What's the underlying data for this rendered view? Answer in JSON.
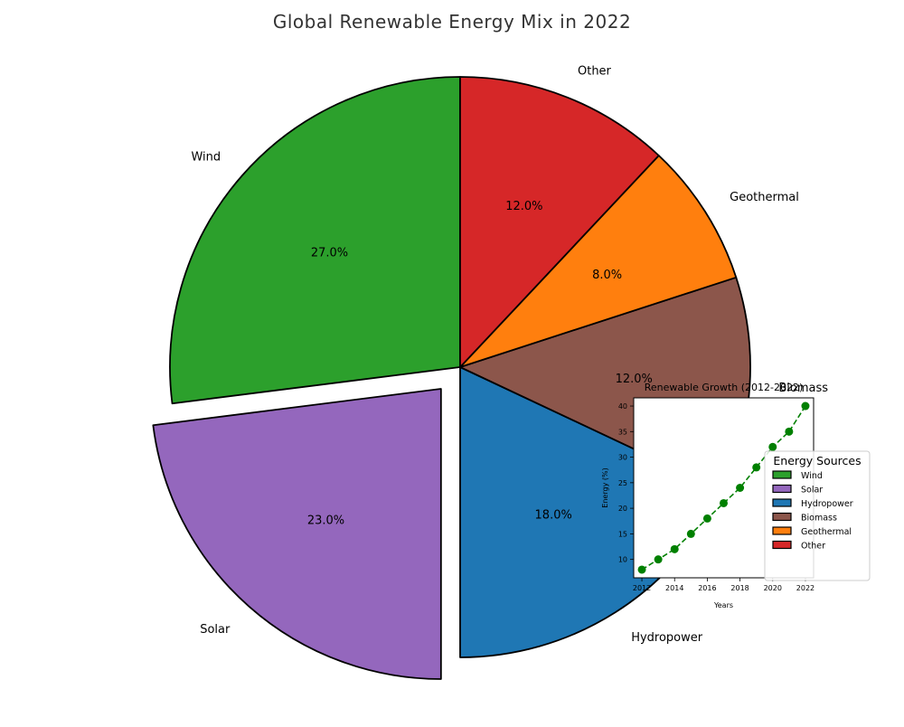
{
  "chart_data": [
    {
      "type": "pie",
      "title": "Global Renewable Energy Mix in 2022",
      "categories": [
        "Wind",
        "Solar",
        "Hydropower",
        "Biomass",
        "Geothermal",
        "Other"
      ],
      "values": [
        27,
        23,
        18,
        12,
        8,
        12
      ],
      "value_labels": [
        "27.0%",
        "23.0%",
        "18.0%",
        "12.0%",
        "8.0%",
        "12.0%"
      ],
      "colors": [
        "#2ca02c",
        "#9467bd",
        "#1f77b4",
        "#8c564b",
        "#ff7f0e",
        "#d62728"
      ],
      "exploded": "Solar",
      "start_angle_deg": 90,
      "direction": "counterclockwise",
      "legend": {
        "title": "Energy Sources",
        "placement": "right",
        "entries": [
          "Wind",
          "Solar",
          "Hydropower",
          "Biomass",
          "Geothermal",
          "Other"
        ]
      }
    },
    {
      "type": "line",
      "title": "Renewable Growth (2012-2022)",
      "xlabel": "Years",
      "ylabel": "Energy (%)",
      "x": [
        2012,
        2013,
        2014,
        2015,
        2016,
        2017,
        2018,
        2019,
        2020,
        2021,
        2022
      ],
      "values": [
        8,
        10,
        12,
        15,
        18,
        21,
        24,
        28,
        32,
        35,
        40
      ],
      "xlim": [
        2011.5,
        2022.5
      ],
      "ylim": [
        6.4,
        41.6
      ],
      "xticks": [
        2012,
        2014,
        2016,
        2018,
        2020,
        2022
      ],
      "yticks": [
        10,
        15,
        20,
        25,
        30,
        35,
        40
      ],
      "line_style": "dashed",
      "marker": "circle",
      "color": "#008000",
      "grid": false,
      "placement": "inset lower-right"
    }
  ]
}
